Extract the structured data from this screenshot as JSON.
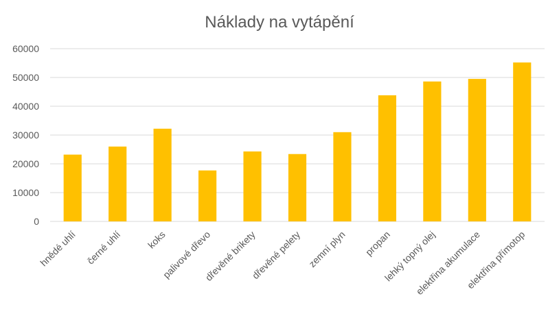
{
  "chart_data": {
    "type": "bar",
    "title": "Náklady na vytápění",
    "xlabel": "",
    "ylabel": "",
    "categories": [
      "hnědé uhlí",
      "černé uhlí",
      "koks",
      "palivové dřevo",
      "dřevěné brikety",
      "dřevěné pelety",
      "zemní plyn",
      "propan",
      "lehký topný olej",
      "elektřina akumulace",
      "elektřina přímotop"
    ],
    "values": [
      23200,
      26000,
      32200,
      17700,
      24300,
      23400,
      31000,
      43800,
      48600,
      49500,
      55200
    ],
    "ylim": [
      0,
      60000
    ],
    "yticks": [
      0,
      10000,
      20000,
      30000,
      40000,
      50000,
      60000
    ],
    "grid": true,
    "legend": "none",
    "bar_color": "#FFC000"
  }
}
